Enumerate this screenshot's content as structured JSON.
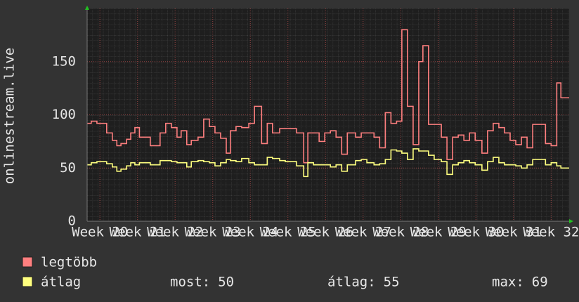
{
  "chart_data": {
    "type": "line",
    "y_label": "onlinestream.live",
    "xlim": [
      19.66,
      32.48
    ],
    "ylim": [
      0,
      200
    ],
    "yticks": [
      0,
      50,
      100,
      150
    ],
    "xticks": [
      {
        "value": 20,
        "label": "Week 20"
      },
      {
        "value": 21,
        "label": "Week 21"
      },
      {
        "value": 22,
        "label": "Week 22"
      },
      {
        "value": 23,
        "label": "Week 23"
      },
      {
        "value": 24,
        "label": "Week 24"
      },
      {
        "value": 25,
        "label": "Week 25"
      },
      {
        "value": 26,
        "label": "Week 26"
      },
      {
        "value": 27,
        "label": "Week 27"
      },
      {
        "value": 28,
        "label": "Week 28"
      },
      {
        "value": 29,
        "label": "Week 29"
      },
      {
        "value": 30,
        "label": "Week 30"
      },
      {
        "value": 31,
        "label": "Week 31"
      },
      {
        "value": 32,
        "label": "Week 32"
      }
    ],
    "grid": true,
    "x": [
      19.66,
      19.77,
      19.92,
      20.18,
      20.33,
      20.45,
      20.56,
      20.71,
      20.82,
      20.93,
      21.05,
      21.34,
      21.6,
      21.75,
      21.9,
      22.05,
      22.16,
      22.31,
      22.43,
      22.61,
      22.76,
      22.91,
      23.06,
      23.21,
      23.36,
      23.47,
      23.62,
      23.77,
      23.96,
      24.11,
      24.3,
      24.45,
      24.59,
      24.78,
      24.93,
      25.23,
      25.42,
      25.53,
      25.68,
      25.83,
      25.98,
      26.13,
      26.28,
      26.43,
      26.58,
      26.8,
      26.95,
      27.1,
      27.29,
      27.44,
      27.59,
      27.74,
      27.89,
      28.03,
      28.18,
      28.33,
      28.48,
      28.59,
      28.74,
      28.89,
      29.08,
      29.23,
      29.38,
      29.53,
      29.68,
      29.83,
      29.98,
      30.16,
      30.31,
      30.46,
      30.61,
      30.76,
      30.91,
      31.06,
      31.21,
      31.36,
      31.51,
      31.66,
      31.85,
      32.0,
      32.15,
      32.26
    ],
    "series": [
      {
        "name": "legtöbb",
        "color": "#ff7f7f",
        "values": [
          92,
          94,
          92,
          83,
          76,
          71,
          73,
          77,
          83,
          88,
          79,
          71,
          83,
          92,
          88,
          79,
          85,
          72,
          76,
          79,
          96,
          89,
          83,
          78,
          64,
          85,
          89,
          88,
          92,
          108,
          73,
          92,
          83,
          87,
          87,
          83,
          55,
          83,
          83,
          75,
          83,
          85,
          79,
          63,
          83,
          79,
          83,
          83,
          79,
          69,
          102,
          92,
          94,
          180,
          108,
          72,
          150,
          165,
          91,
          91,
          79,
          58,
          79,
          81,
          76,
          83,
          76,
          64,
          85,
          92,
          88,
          83,
          76,
          72,
          79,
          69,
          91,
          91,
          73,
          71,
          130,
          116
        ]
      },
      {
        "name": "átlag",
        "color": "#ffff7f",
        "values": [
          53,
          55,
          56,
          54,
          51,
          47,
          49,
          52,
          55,
          53,
          55,
          53,
          57,
          57,
          56,
          55,
          55,
          51,
          56,
          57,
          56,
          55,
          52,
          55,
          58,
          57,
          56,
          59,
          55,
          53,
          53,
          60,
          59,
          57,
          56,
          52,
          42,
          55,
          53,
          53,
          53,
          51,
          53,
          47,
          53,
          57,
          58,
          55,
          53,
          54,
          58,
          67,
          66,
          64,
          58,
          68,
          66,
          66,
          62,
          58,
          56,
          44,
          53,
          55,
          57,
          55,
          53,
          48,
          56,
          60,
          55,
          53,
          53,
          52,
          50,
          53,
          58,
          58,
          53,
          55,
          52,
          50
        ],
        "stats": [
          {
            "label": "most:",
            "value": 50
          },
          {
            "label": "átlag:",
            "value": 55
          },
          {
            "label": "max:",
            "value": 69
          }
        ]
      }
    ]
  }
}
